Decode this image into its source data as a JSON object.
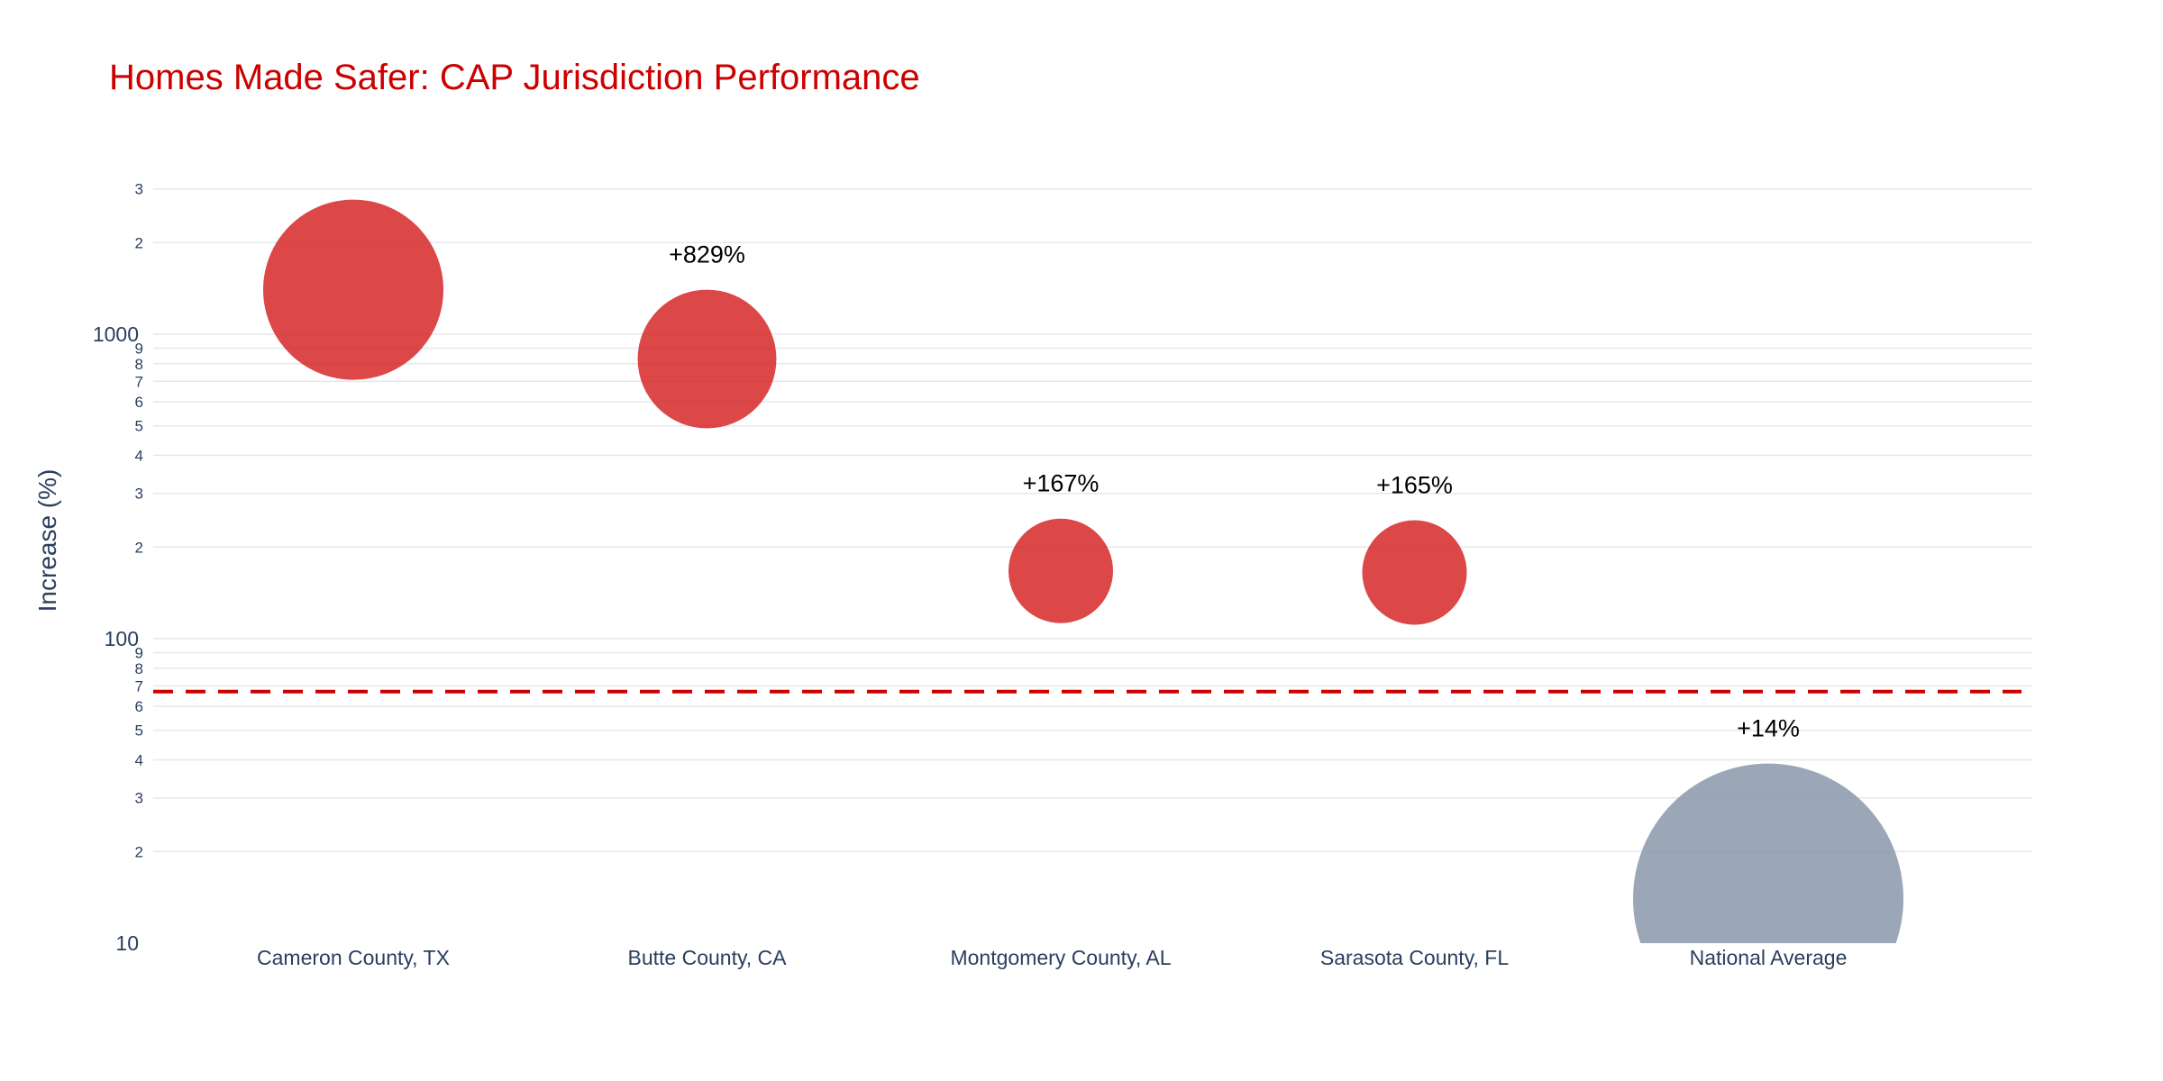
{
  "chart_data": {
    "type": "scatter",
    "title": "Homes Made Safer: CAP Jurisdiction Performance",
    "ylabel": "Increase (%)",
    "xlabel": "",
    "yscale": "log",
    "ylim": [
      10,
      3500
    ],
    "grid": true,
    "legend": "none",
    "categories": [
      "Cameron County, TX",
      "Butte County, CA",
      "Montgomery County, AL",
      "Sarasota County, FL",
      "National Average"
    ],
    "values": [
      1400,
      829,
      167,
      165,
      14
    ],
    "labels": [
      "",
      "+829%",
      "+167%",
      "+165%",
      "+14%"
    ],
    "point_colors": [
      "#d62728",
      "#d62728",
      "#d62728",
      "#d62728",
      "#8a97aa"
    ],
    "reference_line": {
      "y": 67,
      "style": "dashed",
      "color": "#cc0000"
    },
    "yticks": {
      "major": [
        {
          "value": 10,
          "label": "10"
        },
        {
          "value": 100,
          "label": "100"
        },
        {
          "value": 1000,
          "label": "1000"
        }
      ],
      "minor": [
        {
          "value": 20,
          "label": "2"
        },
        {
          "value": 30,
          "label": "3"
        },
        {
          "value": 40,
          "label": "4"
        },
        {
          "value": 50,
          "label": "5"
        },
        {
          "value": 60,
          "label": "6"
        },
        {
          "value": 70,
          "label": "7"
        },
        {
          "value": 80,
          "label": "8"
        },
        {
          "value": 90,
          "label": "9"
        },
        {
          "value": 200,
          "label": "2"
        },
        {
          "value": 300,
          "label": "3"
        },
        {
          "value": 400,
          "label": "4"
        },
        {
          "value": 500,
          "label": "5"
        },
        {
          "value": 600,
          "label": "6"
        },
        {
          "value": 700,
          "label": "7"
        },
        {
          "value": 800,
          "label": "8"
        },
        {
          "value": 900,
          "label": "9"
        },
        {
          "value": 2000,
          "label": "2"
        },
        {
          "value": 3000,
          "label": "3"
        }
      ]
    },
    "colors": {
      "title": "#cc0000",
      "grid": "#e3e8ee",
      "axis_text": "#2a3f5f"
    }
  }
}
